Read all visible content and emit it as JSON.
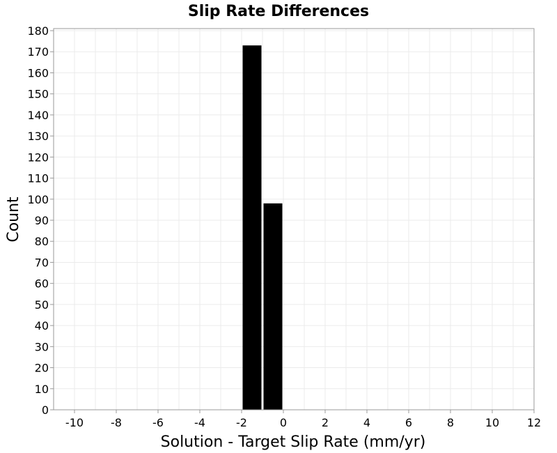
{
  "chart_data": {
    "type": "bar",
    "title": "Slip Rate Differences",
    "xlabel": "Solution - Target Slip Rate (mm/yr)",
    "ylabel": "Count",
    "xlim": [
      -11,
      12
    ],
    "ylim": [
      0,
      181
    ],
    "grid": true,
    "x_ticks": [
      -10,
      -8,
      -6,
      -4,
      -2,
      0,
      2,
      4,
      6,
      8,
      10,
      12
    ],
    "y_ticks": [
      0,
      10,
      20,
      30,
      40,
      50,
      60,
      70,
      80,
      90,
      100,
      110,
      120,
      130,
      140,
      150,
      160,
      170,
      180
    ],
    "bar_color": "#000000",
    "bins": [
      {
        "start": -2,
        "end": -1,
        "value": 173
      },
      {
        "start": -1,
        "end": 0,
        "value": 98
      }
    ]
  }
}
